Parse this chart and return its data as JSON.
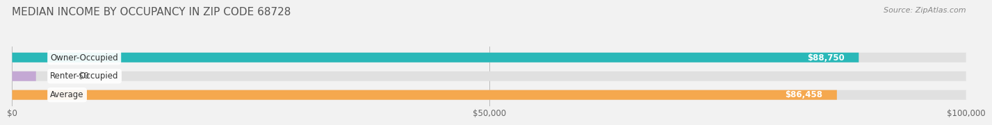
{
  "title": "MEDIAN INCOME BY OCCUPANCY IN ZIP CODE 68728",
  "source": "Source: ZipAtlas.com",
  "categories": [
    "Owner-Occupied",
    "Renter-Occupied",
    "Average"
  ],
  "values": [
    88750,
    0,
    86458
  ],
  "bar_colors": [
    "#2ab8b8",
    "#c4a8d4",
    "#f5a84e"
  ],
  "bar_labels": [
    "$88,750",
    "$0",
    "$86,458"
  ],
  "xlim": [
    0,
    100000
  ],
  "xticks": [
    0,
    50000,
    100000
  ],
  "xtick_labels": [
    "$0",
    "$50,000",
    "$100,000"
  ],
  "background_color": "#f2f2f2",
  "bar_bg_color": "#e0e0e0",
  "title_fontsize": 11,
  "source_fontsize": 8,
  "label_fontsize": 8.5,
  "tick_fontsize": 8.5
}
